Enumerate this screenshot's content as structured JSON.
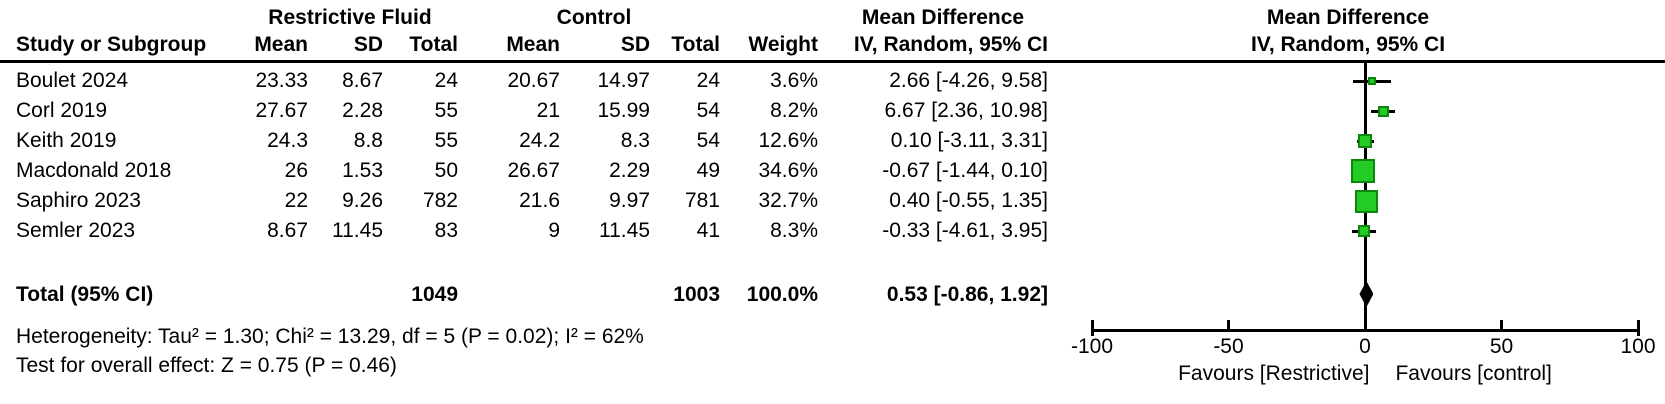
{
  "page": {
    "background": "#ffffff",
    "text_color": "#000000"
  },
  "table": {
    "group_headers": {
      "restrictive": "Restrictive Fluid",
      "control": "Control",
      "md_left": "Mean Difference",
      "md_right": "Mean Difference"
    },
    "sub_headers": {
      "study": "Study or Subgroup",
      "mean1": "Mean",
      "sd1": "SD",
      "total1": "Total",
      "mean2": "Mean",
      "sd2": "SD",
      "total2": "Total",
      "weight": "Weight",
      "ci_left": "IV, Random, 95% CI",
      "ci_right": "IV, Random, 95% CI"
    },
    "rows": [
      {
        "study": "Boulet 2024",
        "mean1": "23.33",
        "sd1": "8.67",
        "total1": "24",
        "mean2": "20.67",
        "sd2": "14.97",
        "total2": "24",
        "weight": "3.6%",
        "ci": "2.66 [-4.26, 9.58]"
      },
      {
        "study": "Corl 2019",
        "mean1": "27.67",
        "sd1": "2.28",
        "total1": "55",
        "mean2": "21",
        "sd2": "15.99",
        "total2": "54",
        "weight": "8.2%",
        "ci": "6.67 [2.36, 10.98]"
      },
      {
        "study": "Keith 2019",
        "mean1": "24.3",
        "sd1": "8.8",
        "total1": "55",
        "mean2": "24.2",
        "sd2": "8.3",
        "total2": "54",
        "weight": "12.6%",
        "ci": "0.10 [-3.11, 3.31]"
      },
      {
        "study": "Macdonald 2018",
        "mean1": "26",
        "sd1": "1.53",
        "total1": "50",
        "mean2": "26.67",
        "sd2": "2.29",
        "total2": "49",
        "weight": "34.6%",
        "ci": "-0.67 [-1.44, 0.10]"
      },
      {
        "study": "Saphiro 2023",
        "mean1": "22",
        "sd1": "9.26",
        "total1": "782",
        "mean2": "21.6",
        "sd2": "9.97",
        "total2": "781",
        "weight": "32.7%",
        "ci": "0.40 [-0.55, 1.35]"
      },
      {
        "study": "Semler 2023",
        "mean1": "8.67",
        "sd1": "11.45",
        "total1": "83",
        "mean2": "9",
        "sd2": "11.45",
        "total2": "41",
        "weight": "8.3%",
        "ci": "-0.33 [-4.61, 3.95]"
      }
    ],
    "total_row": {
      "label": "Total (95% CI)",
      "total1": "1049",
      "total2": "1003",
      "weight": "100.0%",
      "ci": "0.53 [-0.86, 1.92]"
    },
    "footnotes": {
      "heterogeneity": "Heterogeneity: Tau² = 1.30; Chi² = 13.29, df = 5 (P = 0.02); I² = 62%",
      "overall_effect": "Test for overall effect: Z = 0.75 (P = 0.46)"
    }
  },
  "chart_data": {
    "type": "forest",
    "effect_measure": "Mean Difference — IV, Random, 95% CI",
    "x_axis": {
      "min": -100,
      "max": 100,
      "ticks": [
        -100,
        -50,
        0,
        50,
        100
      ],
      "left_label": "Favours [Restrictive]",
      "right_label": "Favours [control]"
    },
    "studies": [
      {
        "name": "Boulet 2024",
        "md": 2.66,
        "ci_low": -4.26,
        "ci_high": 9.58,
        "weight_pct": 3.6
      },
      {
        "name": "Corl 2019",
        "md": 6.67,
        "ci_low": 2.36,
        "ci_high": 10.98,
        "weight_pct": 8.2
      },
      {
        "name": "Keith 2019",
        "md": 0.1,
        "ci_low": -3.11,
        "ci_high": 3.31,
        "weight_pct": 12.6
      },
      {
        "name": "Macdonald 2018",
        "md": -0.67,
        "ci_low": -1.44,
        "ci_high": 0.1,
        "weight_pct": 34.6
      },
      {
        "name": "Saphiro 2023",
        "md": 0.4,
        "ci_low": -0.55,
        "ci_high": 1.35,
        "weight_pct": 32.7
      },
      {
        "name": "Semler 2023",
        "md": -0.33,
        "ci_low": -4.61,
        "ci_high": 3.95,
        "weight_pct": 8.3
      }
    ],
    "total": {
      "md": 0.53,
      "ci_low": -0.86,
      "ci_high": 1.92
    },
    "colors": {
      "marker_fill": "#24CB24",
      "marker_border": "#0D860D",
      "line": "#000000",
      "diamond": "#000000"
    }
  }
}
